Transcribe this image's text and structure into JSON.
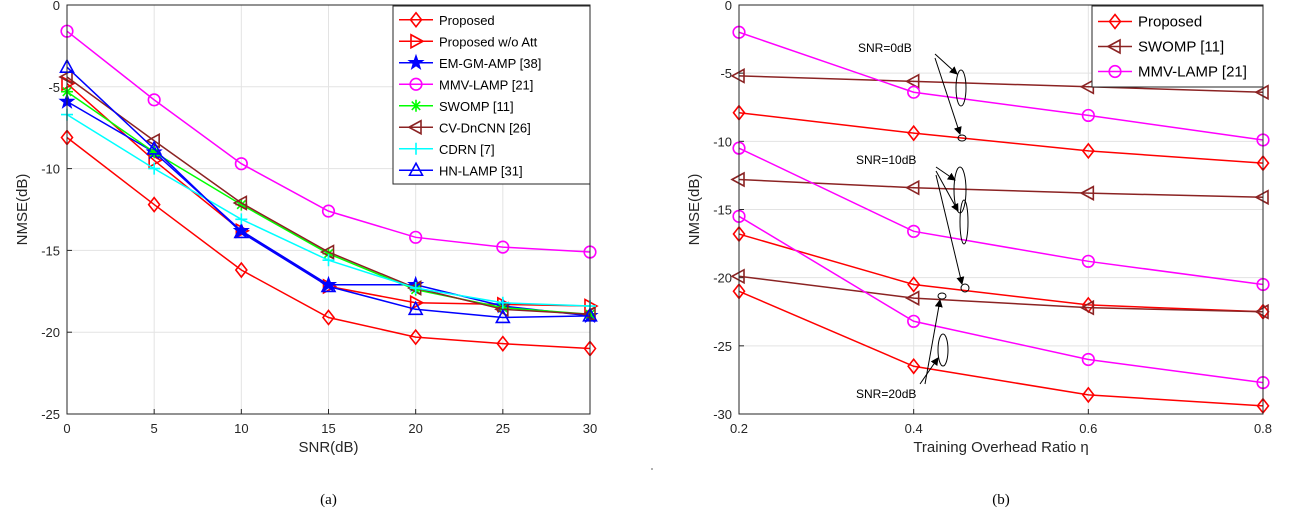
{
  "chart_data": [
    {
      "type": "line",
      "caption": "(a)",
      "xlabel": "SNR(dB)",
      "ylabel": "NMSE(dB)",
      "xlim": [
        0,
        30
      ],
      "ylim": [
        -25,
        0
      ],
      "xticks": [
        0,
        5,
        10,
        15,
        20,
        25,
        30
      ],
      "yticks": [
        0,
        -5,
        -10,
        -15,
        -20,
        -25
      ],
      "grid": true,
      "legend_position": "top-right",
      "x": [
        0,
        5,
        10,
        15,
        20,
        25,
        30
      ],
      "series": [
        {
          "name": "Proposed",
          "color": "#ff0000",
          "marker": "diamond",
          "values": [
            -8.1,
            -12.2,
            -16.2,
            -19.1,
            -20.3,
            -20.7,
            -21.0
          ]
        },
        {
          "name": "Proposed w/o Att",
          "color": "#ff0000",
          "marker": "triangle-right",
          "values": [
            -4.8,
            -9.5,
            -13.8,
            -17.2,
            -18.2,
            -18.3,
            -18.4
          ]
        },
        {
          "name": "EM-GM-AMP [38]",
          "color": "#0000ff",
          "marker": "star",
          "values": [
            -5.9,
            -9.0,
            -13.8,
            -17.1,
            -17.1,
            -18.4,
            -19.0
          ]
        },
        {
          "name": "MMV-LAMP [21]",
          "color": "#ff00ff",
          "marker": "circle",
          "values": [
            -1.6,
            -5.8,
            -9.7,
            -12.6,
            -14.2,
            -14.8,
            -15.1
          ]
        },
        {
          "name": "SWOMP [11]",
          "color": "#00ff00",
          "marker": "asterisk",
          "values": [
            -5.3,
            -9.0,
            -12.2,
            -15.2,
            -17.4,
            -18.5,
            -18.9
          ]
        },
        {
          "name": "CV-DnCNN [26]",
          "color": "#8b2323",
          "marker": "triangle-left",
          "values": [
            -4.4,
            -8.3,
            -12.1,
            -15.1,
            -17.3,
            -18.6,
            -18.9
          ]
        },
        {
          "name": "CDRN [7]",
          "color": "#00ffff",
          "marker": "plus",
          "values": [
            -6.7,
            -10.0,
            -13.1,
            -15.6,
            -17.3,
            -18.2,
            -18.4
          ]
        },
        {
          "name": "HN-LAMP [31]",
          "color": "#0000ff",
          "marker": "triangle-up",
          "values": [
            -3.8,
            -8.8,
            -13.9,
            -17.2,
            -18.6,
            -19.1,
            -19.0
          ]
        }
      ]
    },
    {
      "type": "line",
      "caption": "(b)",
      "xlabel": "Training Overhead Ratio η",
      "ylabel": "NMSE(dB)",
      "xlim": [
        0.2,
        0.8
      ],
      "ylim": [
        -30,
        0
      ],
      "xticks": [
        0.2,
        0.4,
        0.6,
        0.8
      ],
      "yticks": [
        0,
        -5,
        -10,
        -15,
        -20,
        -25,
        -30
      ],
      "grid": true,
      "legend_position": "top-right",
      "x": [
        0.2,
        0.4,
        0.6,
        0.8
      ],
      "legend": [
        {
          "name": "Proposed",
          "color": "#ff0000",
          "marker": "diamond"
        },
        {
          "name": "SWOMP [11]",
          "color": "#8b2323",
          "marker": "triangle-left"
        },
        {
          "name": "MMV-LAMP [21]",
          "color": "#ff00ff",
          "marker": "circle"
        }
      ],
      "series": [
        {
          "name": "Proposed",
          "snr": "SNR=0dB",
          "color": "#ff0000",
          "marker": "diamond",
          "values": [
            -7.9,
            -9.4,
            -10.7,
            -11.6
          ]
        },
        {
          "name": "SWOMP [11]",
          "snr": "SNR=0dB",
          "color": "#8b2323",
          "marker": "triangle-left",
          "values": [
            -5.2,
            -5.6,
            -6.0,
            -6.4
          ]
        },
        {
          "name": "MMV-LAMP [21]",
          "snr": "SNR=0dB",
          "color": "#ff00ff",
          "marker": "circle",
          "values": [
            -2.0,
            -6.4,
            -8.1,
            -9.9
          ]
        },
        {
          "name": "Proposed",
          "snr": "SNR=10dB",
          "color": "#ff0000",
          "marker": "diamond",
          "values": [
            -16.8,
            -20.5,
            -22.0,
            -22.5
          ]
        },
        {
          "name": "SWOMP [11]",
          "snr": "SNR=10dB",
          "color": "#8b2323",
          "marker": "triangle-left",
          "values": [
            -12.8,
            -13.4,
            -13.8,
            -14.1
          ]
        },
        {
          "name": "MMV-LAMP [21]",
          "snr": "SNR=10dB",
          "color": "#ff00ff",
          "marker": "circle",
          "values": [
            -10.5,
            -16.6,
            -18.8,
            -20.5
          ]
        },
        {
          "name": "Proposed",
          "snr": "SNR=20dB",
          "color": "#ff0000",
          "marker": "diamond",
          "values": [
            -21.0,
            -26.5,
            -28.6,
            -29.4
          ]
        },
        {
          "name": "SWOMP [11]",
          "snr": "SNR=20dB",
          "color": "#8b2323",
          "marker": "triangle-left",
          "values": [
            -19.9,
            -21.5,
            -22.2,
            -22.5
          ]
        },
        {
          "name": "MMV-LAMP [21]",
          "snr": "SNR=20dB",
          "color": "#ff00ff",
          "marker": "circle",
          "values": [
            -15.5,
            -23.2,
            -26.0,
            -27.7
          ]
        }
      ],
      "annotations": [
        "SNR=0dB",
        "SNR=10dB",
        "SNR=20dB"
      ]
    }
  ]
}
